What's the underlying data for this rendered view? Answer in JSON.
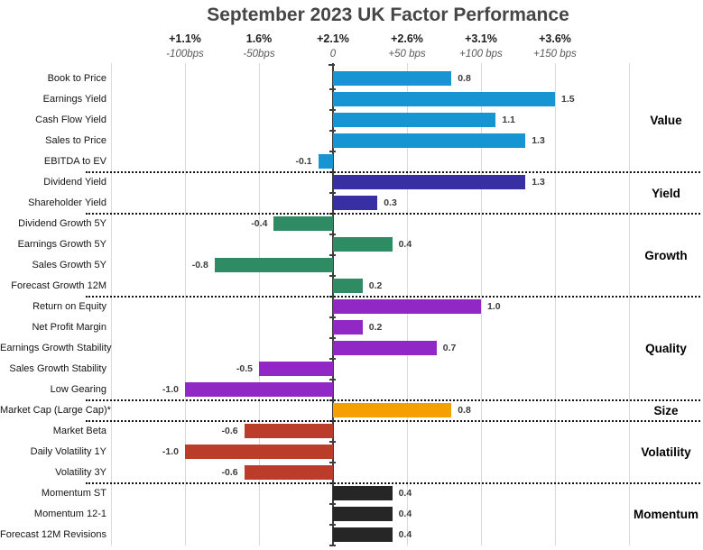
{
  "chart_data": {
    "type": "bar",
    "orientation": "horizontal",
    "title": "September 2023 UK Factor Performance",
    "x_axis": {
      "top_row_percent_labels": [
        "+1.1%",
        "1.6%",
        "+2.1%",
        "+2.6%",
        "+3.1%",
        "+3.6%"
      ],
      "bottom_row_bps_labels": [
        "-100bps",
        "-50bps",
        "0",
        "+50 bps",
        "+100 bps",
        "+150 bps"
      ],
      "tick_values_bps": [
        -100,
        -50,
        0,
        50,
        100,
        150
      ],
      "xlim_bps": [
        -150,
        200
      ],
      "grid": true
    },
    "value_unit": "percent (1.0 = 100bps)",
    "legend_position": "right-group-labels",
    "group_separator_style": "dotted",
    "groups": [
      {
        "name": "Value",
        "color": "#1795D2",
        "items": [
          {
            "label": "Book to Price",
            "value": 0.8
          },
          {
            "label": "Earnings Yield",
            "value": 1.5
          },
          {
            "label": "Cash Flow Yield",
            "value": 1.1
          },
          {
            "label": "Sales to Price",
            "value": 1.3
          },
          {
            "label": "EBITDA to EV",
            "value": -0.1
          }
        ]
      },
      {
        "name": "Yield",
        "color": "#372FA2",
        "items": [
          {
            "label": "Dividend Yield",
            "value": 1.3
          },
          {
            "label": "Shareholder Yield",
            "value": 0.3
          }
        ]
      },
      {
        "name": "Growth",
        "color": "#2E8B64",
        "items": [
          {
            "label": "Dividend Growth 5Y",
            "value": -0.4
          },
          {
            "label": "Earnings Growth 5Y",
            "value": 0.4
          },
          {
            "label": "Sales Growth 5Y",
            "value": -0.8
          },
          {
            "label": "Forecast Growth 12M",
            "value": 0.2
          }
        ]
      },
      {
        "name": "Quality",
        "color": "#9127C4",
        "items": [
          {
            "label": "Return on Equity",
            "value": 1.0
          },
          {
            "label": "Net Profit Margin",
            "value": 0.2
          },
          {
            "label": "Earnings Growth Stability",
            "value": 0.7
          },
          {
            "label": "Sales Growth Stability",
            "value": -0.5
          },
          {
            "label": "Low Gearing",
            "value": -1.0
          }
        ]
      },
      {
        "name": "Size",
        "color": "#F3A000",
        "items": [
          {
            "label": "Market Cap (Large Cap)*",
            "value": 0.8
          }
        ]
      },
      {
        "name": "Volatility",
        "color": "#BC3C2B",
        "items": [
          {
            "label": "Market Beta",
            "value": -0.6
          },
          {
            "label": "Daily Volatility 1Y",
            "value": -1.0
          },
          {
            "label": "Volatility 3Y",
            "value": -0.6
          }
        ]
      },
      {
        "name": "Momentum",
        "color": "#262626",
        "items": [
          {
            "label": "Momentum ST",
            "value": 0.4
          },
          {
            "label": "Momentum 12-1",
            "value": 0.4
          },
          {
            "label": "Forecast 12M Revisions",
            "value": 0.4
          }
        ]
      }
    ]
  }
}
